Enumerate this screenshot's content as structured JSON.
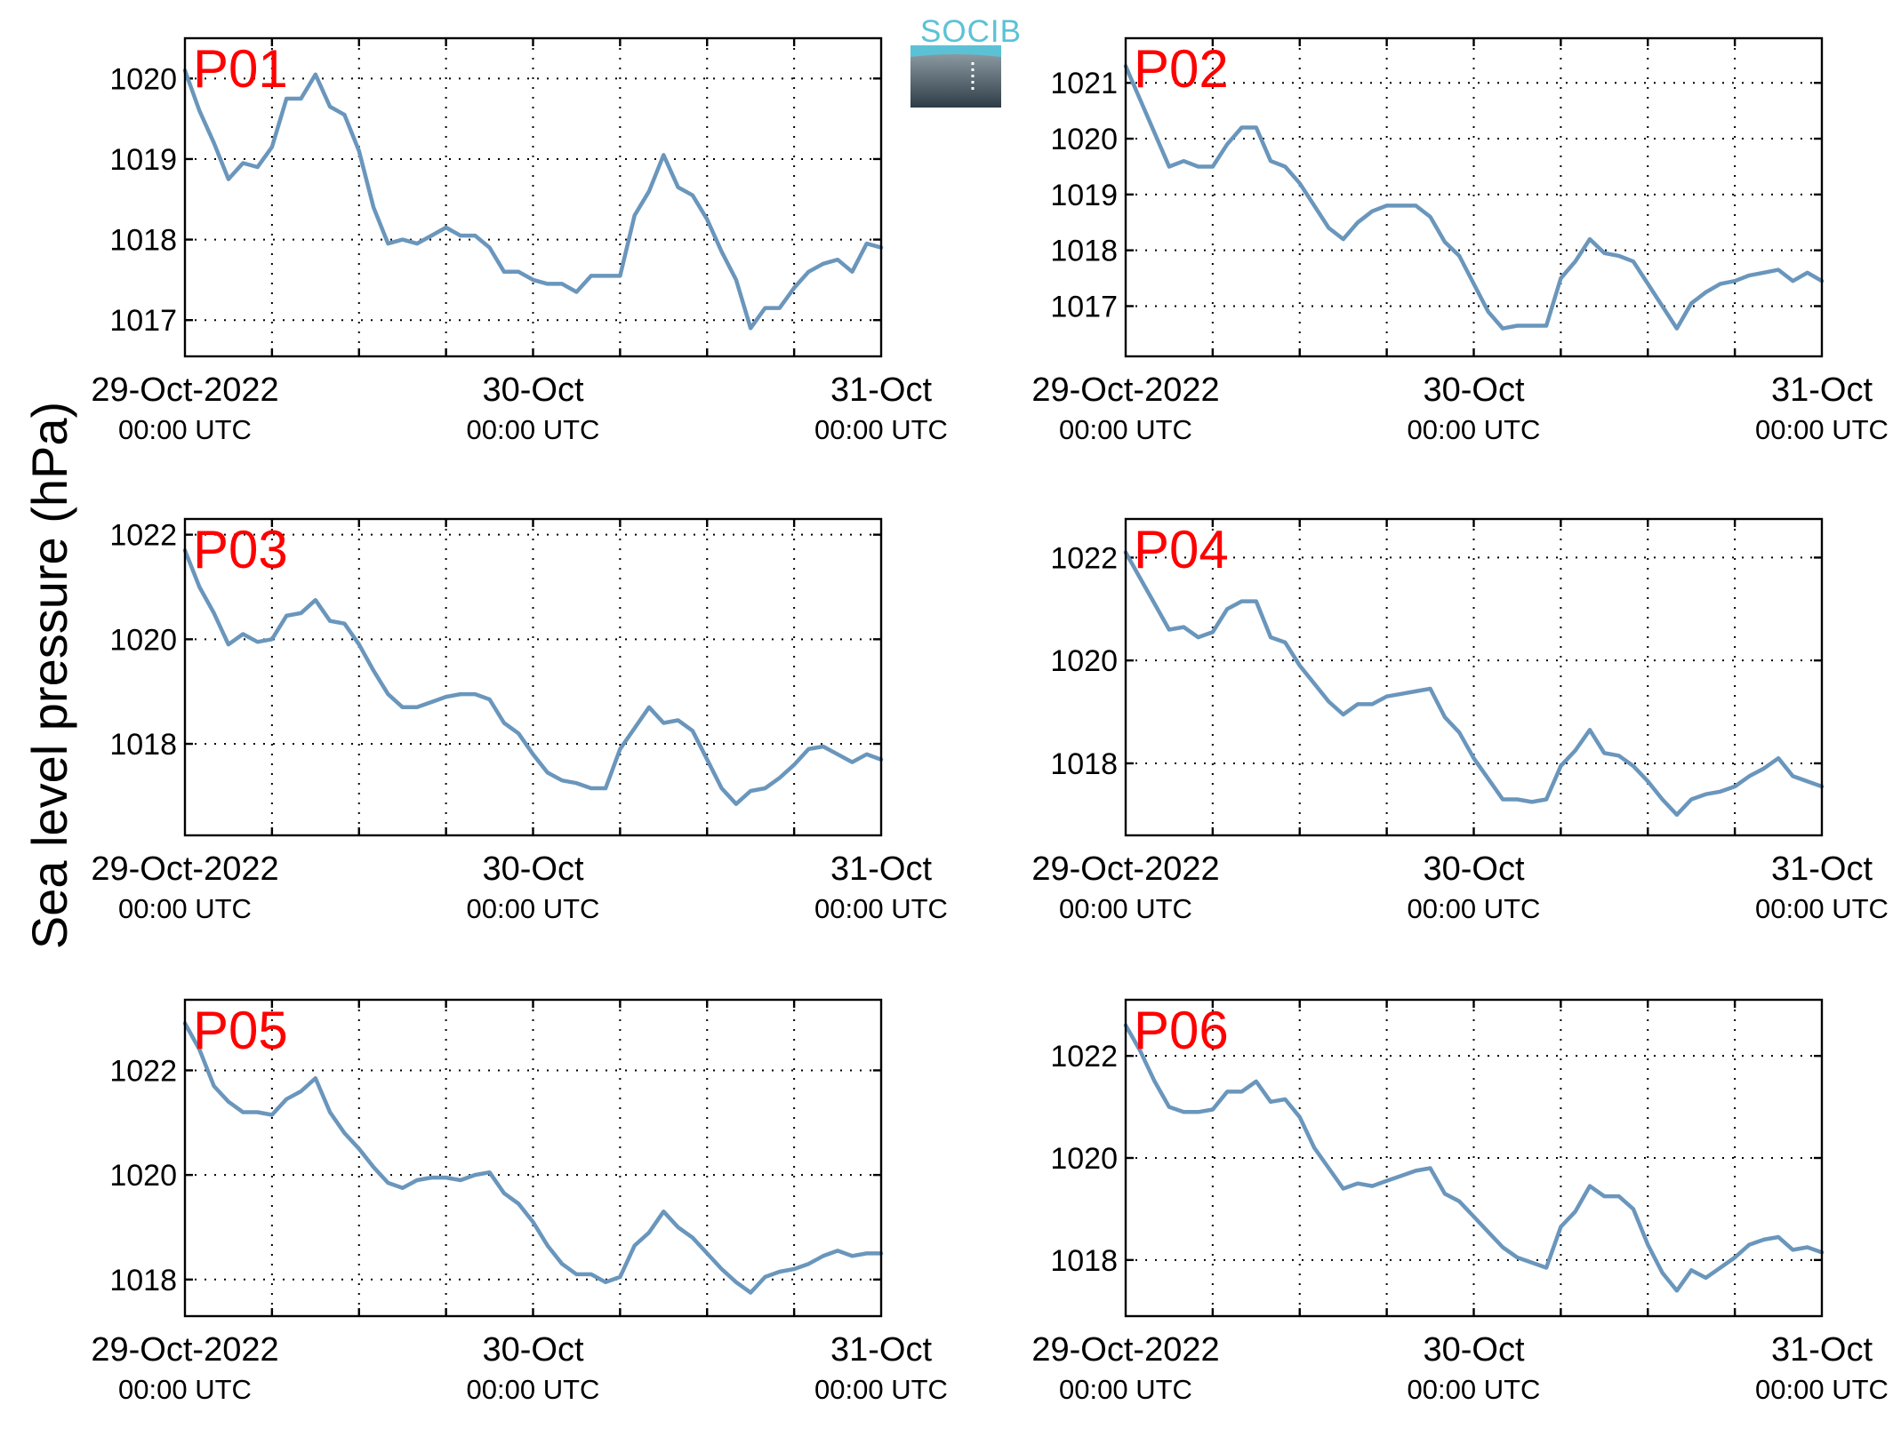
{
  "figure": {
    "ylabel": "Sea level pressure (hPa)",
    "logo_text": "SOCIB"
  },
  "chart_data": [
    {
      "type": "line",
      "title": "P01",
      "x_range": [
        "2022-10-29T00:00",
        "2022-10-31T00:00"
      ],
      "x_ticks": [
        {
          "date": "2022-10-29T00:00",
          "label": "29-Oct-2022",
          "sublabel": "00:00 UTC"
        },
        {
          "date": "2022-10-30T00:00",
          "label": "30-Oct",
          "sublabel": "00:00 UTC"
        },
        {
          "date": "2022-10-31T00:00",
          "label": "31-Oct",
          "sublabel": "00:00 UTC"
        }
      ],
      "ylim": [
        1016.55,
        1020.5
      ],
      "y_ticks": [
        1017,
        1018,
        1019,
        1020
      ],
      "grid": true,
      "x_hours": [
        0,
        1,
        2,
        3,
        4,
        5,
        6,
        7,
        8,
        9,
        10,
        11,
        12,
        13,
        14,
        15,
        16,
        17,
        18,
        19,
        20,
        21,
        22,
        23,
        24,
        25,
        26,
        27,
        28,
        29,
        30,
        31,
        32,
        33,
        34,
        35,
        36,
        37,
        38,
        39,
        40,
        41,
        42,
        43,
        44,
        45,
        46,
        47,
        48
      ],
      "series": [
        {
          "values": [
            1020.1,
            1019.6,
            1019.2,
            1018.75,
            1018.95,
            1018.9,
            1019.15,
            1019.75,
            1019.75,
            1020.05,
            1019.65,
            1019.55,
            1019.1,
            1018.4,
            1017.95,
            1018.0,
            1017.95,
            1018.05,
            1018.15,
            1018.05,
            1018.05,
            1017.9,
            1017.6,
            1017.6,
            1017.5,
            1017.45,
            1017.45,
            1017.35,
            1017.55,
            1017.55,
            1017.55,
            1018.3,
            1018.6,
            1019.05,
            1018.65,
            1018.55,
            1018.25,
            1017.85,
            1017.5,
            1016.9,
            1017.15,
            1017.15,
            1017.4,
            1017.6,
            1017.7,
            1017.75,
            1017.6,
            1017.95,
            1017.9
          ]
        }
      ]
    },
    {
      "type": "line",
      "title": "P02",
      "x_range": [
        "2022-10-29T00:00",
        "2022-10-31T00:00"
      ],
      "x_ticks": [
        {
          "date": "2022-10-29T00:00",
          "label": "29-Oct-2022",
          "sublabel": "00:00 UTC"
        },
        {
          "date": "2022-10-30T00:00",
          "label": "30-Oct",
          "sublabel": "00:00 UTC"
        },
        {
          "date": "2022-10-31T00:00",
          "label": "31-Oct",
          "sublabel": "00:00 UTC"
        }
      ],
      "ylim": [
        1016.1,
        1021.8
      ],
      "y_ticks": [
        1017,
        1018,
        1019,
        1020,
        1021
      ],
      "grid": true,
      "x_hours": [
        0,
        1,
        2,
        3,
        4,
        5,
        6,
        7,
        8,
        9,
        10,
        11,
        12,
        13,
        14,
        15,
        16,
        17,
        18,
        19,
        20,
        21,
        22,
        23,
        24,
        25,
        26,
        27,
        28,
        29,
        30,
        31,
        32,
        33,
        34,
        35,
        36,
        37,
        38,
        39,
        40,
        41,
        42,
        43,
        44,
        45,
        46,
        47,
        48
      ],
      "series": [
        {
          "values": [
            1021.3,
            1020.7,
            1020.1,
            1019.5,
            1019.6,
            1019.5,
            1019.5,
            1019.9,
            1020.2,
            1020.2,
            1019.6,
            1019.5,
            1019.2,
            1018.8,
            1018.4,
            1018.2,
            1018.5,
            1018.7,
            1018.8,
            1018.8,
            1018.8,
            1018.6,
            1018.15,
            1017.9,
            1017.4,
            1016.9,
            1016.6,
            1016.65,
            1016.65,
            1016.65,
            1017.5,
            1017.8,
            1018.2,
            1017.95,
            1017.9,
            1017.8,
            1017.4,
            1017.0,
            1016.6,
            1017.05,
            1017.25,
            1017.4,
            1017.45,
            1017.55,
            1017.6,
            1017.65,
            1017.45,
            1017.6,
            1017.45
          ]
        }
      ]
    },
    {
      "type": "line",
      "title": "P03",
      "x_range": [
        "2022-10-29T00:00",
        "2022-10-31T00:00"
      ],
      "x_ticks": [
        {
          "date": "2022-10-29T00:00",
          "label": "29-Oct-2022",
          "sublabel": "00:00 UTC"
        },
        {
          "date": "2022-10-30T00:00",
          "label": "30-Oct",
          "sublabel": "00:00 UTC"
        },
        {
          "date": "2022-10-31T00:00",
          "label": "31-Oct",
          "sublabel": "00:00 UTC"
        }
      ],
      "ylim": [
        1016.25,
        1022.3
      ],
      "y_ticks": [
        1018,
        1020,
        1022
      ],
      "grid": true,
      "x_hours": [
        0,
        1,
        2,
        3,
        4,
        5,
        6,
        7,
        8,
        9,
        10,
        11,
        12,
        13,
        14,
        15,
        16,
        17,
        18,
        19,
        20,
        21,
        22,
        23,
        24,
        25,
        26,
        27,
        28,
        29,
        30,
        31,
        32,
        33,
        34,
        35,
        36,
        37,
        38,
        39,
        40,
        41,
        42,
        43,
        44,
        45,
        46,
        47,
        48
      ],
      "series": [
        {
          "values": [
            1021.7,
            1021.0,
            1020.5,
            1019.9,
            1020.1,
            1019.95,
            1020.0,
            1020.45,
            1020.5,
            1020.75,
            1020.35,
            1020.3,
            1019.9,
            1019.4,
            1018.95,
            1018.7,
            1018.7,
            1018.8,
            1018.9,
            1018.95,
            1018.95,
            1018.85,
            1018.4,
            1018.2,
            1017.8,
            1017.45,
            1017.3,
            1017.25,
            1017.15,
            1017.15,
            1017.9,
            1018.3,
            1018.7,
            1018.4,
            1018.45,
            1018.25,
            1017.7,
            1017.15,
            1016.85,
            1017.1,
            1017.15,
            1017.35,
            1017.6,
            1017.9,
            1017.95,
            1017.8,
            1017.65,
            1017.8,
            1017.7
          ]
        }
      ]
    },
    {
      "type": "line",
      "title": "P04",
      "x_range": [
        "2022-10-29T00:00",
        "2022-10-31T00:00"
      ],
      "x_ticks": [
        {
          "date": "2022-10-29T00:00",
          "label": "29-Oct-2022",
          "sublabel": "00:00 UTC"
        },
        {
          "date": "2022-10-30T00:00",
          "label": "30-Oct",
          "sublabel": "00:00 UTC"
        },
        {
          "date": "2022-10-31T00:00",
          "label": "31-Oct",
          "sublabel": "00:00 UTC"
        }
      ],
      "ylim": [
        1016.6,
        1022.75
      ],
      "y_ticks": [
        1018,
        1020,
        1022
      ],
      "grid": true,
      "x_hours": [
        0,
        1,
        2,
        3,
        4,
        5,
        6,
        7,
        8,
        9,
        10,
        11,
        12,
        13,
        14,
        15,
        16,
        17,
        18,
        19,
        20,
        21,
        22,
        23,
        24,
        25,
        26,
        27,
        28,
        29,
        30,
        31,
        32,
        33,
        34,
        35,
        36,
        37,
        38,
        39,
        40,
        41,
        42,
        43,
        44,
        45,
        46,
        47,
        48
      ],
      "series": [
        {
          "values": [
            1022.1,
            1021.6,
            1021.1,
            1020.6,
            1020.65,
            1020.45,
            1020.55,
            1021.0,
            1021.15,
            1021.15,
            1020.45,
            1020.35,
            1019.9,
            1019.55,
            1019.2,
            1018.95,
            1019.15,
            1019.15,
            1019.3,
            1019.35,
            1019.4,
            1019.45,
            1018.9,
            1018.6,
            1018.1,
            1017.7,
            1017.3,
            1017.3,
            1017.25,
            1017.3,
            1017.95,
            1018.25,
            1018.65,
            1018.2,
            1018.15,
            1017.95,
            1017.65,
            1017.3,
            1017.0,
            1017.3,
            1017.4,
            1017.45,
            1017.55,
            1017.75,
            1017.9,
            1018.1,
            1017.75,
            1017.65,
            1017.55
          ]
        }
      ]
    },
    {
      "type": "line",
      "title": "P05",
      "x_range": [
        "2022-10-29T00:00",
        "2022-10-31T00:00"
      ],
      "x_ticks": [
        {
          "date": "2022-10-29T00:00",
          "label": "29-Oct-2022",
          "sublabel": "00:00 UTC"
        },
        {
          "date": "2022-10-30T00:00",
          "label": "30-Oct",
          "sublabel": "00:00 UTC"
        },
        {
          "date": "2022-10-31T00:00",
          "label": "31-Oct",
          "sublabel": "00:00 UTC"
        }
      ],
      "ylim": [
        1017.3,
        1023.35
      ],
      "y_ticks": [
        1018,
        1020,
        1022
      ],
      "grid": true,
      "x_hours": [
        0,
        1,
        2,
        3,
        4,
        5,
        6,
        7,
        8,
        9,
        10,
        11,
        12,
        13,
        14,
        15,
        16,
        17,
        18,
        19,
        20,
        21,
        22,
        23,
        24,
        25,
        26,
        27,
        28,
        29,
        30,
        31,
        32,
        33,
        34,
        35,
        36,
        37,
        38,
        39,
        40,
        41,
        42,
        43,
        44,
        45,
        46,
        47,
        48
      ],
      "series": [
        {
          "values": [
            1022.9,
            1022.4,
            1021.7,
            1021.4,
            1021.2,
            1021.2,
            1021.15,
            1021.45,
            1021.6,
            1021.85,
            1021.2,
            1020.8,
            1020.5,
            1020.15,
            1019.85,
            1019.75,
            1019.9,
            1019.95,
            1019.95,
            1019.9,
            1020.0,
            1020.05,
            1019.65,
            1019.45,
            1019.1,
            1018.65,
            1018.3,
            1018.1,
            1018.1,
            1017.95,
            1018.05,
            1018.65,
            1018.9,
            1019.3,
            1019.0,
            1018.8,
            1018.5,
            1018.2,
            1017.95,
            1017.75,
            1018.05,
            1018.15,
            1018.2,
            1018.3,
            1018.45,
            1018.55,
            1018.45,
            1018.5,
            1018.5
          ]
        }
      ]
    },
    {
      "type": "line",
      "title": "P06",
      "x_range": [
        "2022-10-29T00:00",
        "2022-10-31T00:00"
      ],
      "x_ticks": [
        {
          "date": "2022-10-29T00:00",
          "label": "29-Oct-2022",
          "sublabel": "00:00 UTC"
        },
        {
          "date": "2022-10-30T00:00",
          "label": "30-Oct",
          "sublabel": "00:00 UTC"
        },
        {
          "date": "2022-10-31T00:00",
          "label": "31-Oct",
          "sublabel": "00:00 UTC"
        }
      ],
      "ylim": [
        1016.9,
        1023.1
      ],
      "y_ticks": [
        1018,
        1020,
        1022
      ],
      "grid": true,
      "x_hours": [
        0,
        1,
        2,
        3,
        4,
        5,
        6,
        7,
        8,
        9,
        10,
        11,
        12,
        13,
        14,
        15,
        16,
        17,
        18,
        19,
        20,
        21,
        22,
        23,
        24,
        25,
        26,
        27,
        28,
        29,
        30,
        31,
        32,
        33,
        34,
        35,
        36,
        37,
        38,
        39,
        40,
        41,
        42,
        43,
        44,
        45,
        46,
        47,
        48
      ],
      "series": [
        {
          "values": [
            1022.6,
            1022.1,
            1021.5,
            1021.0,
            1020.9,
            1020.9,
            1020.95,
            1021.3,
            1021.3,
            1021.5,
            1021.1,
            1021.15,
            1020.8,
            1020.2,
            1019.8,
            1019.4,
            1019.5,
            1019.45,
            1019.55,
            1019.65,
            1019.75,
            1019.8,
            1019.3,
            1019.15,
            1018.85,
            1018.55,
            1018.25,
            1018.05,
            1017.95,
            1017.85,
            1018.65,
            1018.95,
            1019.45,
            1019.25,
            1019.25,
            1019.0,
            1018.3,
            1017.75,
            1017.4,
            1017.8,
            1017.65,
            1017.85,
            1018.05,
            1018.3,
            1018.4,
            1018.45,
            1018.2,
            1018.25,
            1018.15
          ]
        }
      ]
    }
  ]
}
